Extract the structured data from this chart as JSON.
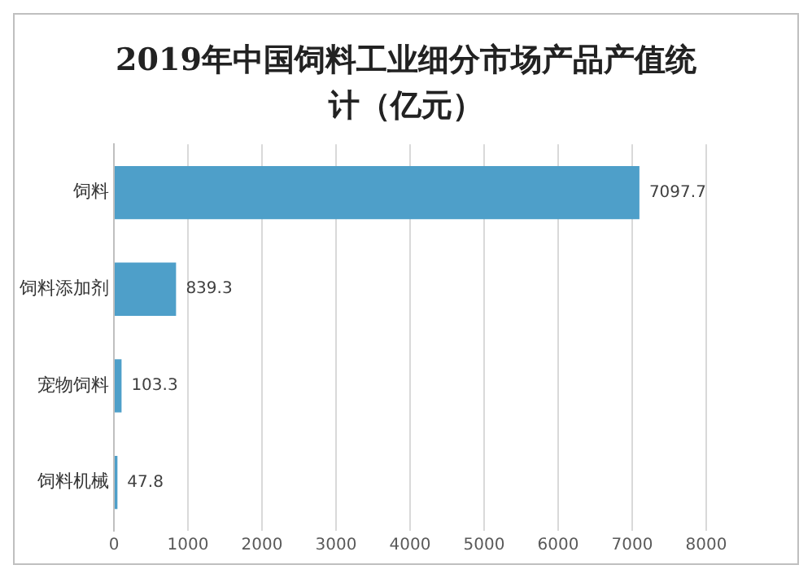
{
  "chart_data": {
    "type": "bar",
    "orientation": "horizontal",
    "title": "2019年中国饲料工业细分市场产品产值统计（亿元）",
    "categories": [
      "饲料",
      "饲料添加剂",
      "宠物饲料",
      "饲料机械"
    ],
    "values": [
      7097.7,
      839.3,
      103.3,
      47.8
    ],
    "color": "#4e9fc9",
    "xlim": [
      0,
      8000
    ],
    "xticks": [
      0,
      1000,
      2000,
      3000,
      4000,
      5000,
      6000,
      7000,
      8000
    ],
    "grid": "x",
    "data_labels": true,
    "legend": false
  }
}
